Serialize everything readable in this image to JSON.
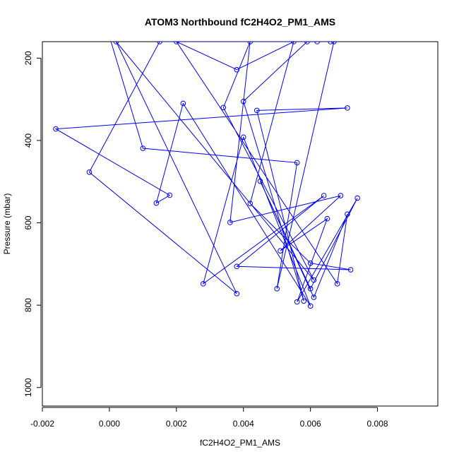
{
  "chart_data": {
    "type": "line",
    "title": "ATOM3 Northbound fC2H4O2_PM1_AMS",
    "xlabel": "fC2H4O2_PM1_AMS",
    "ylabel": "Pressure (mbar)",
    "xlim": [
      -0.002,
      0.0098
    ],
    "ylim": [
      1045,
      160
    ],
    "y_reversed": true,
    "xticks": [
      -0.002,
      0.0,
      0.002,
      0.004,
      0.006,
      0.008
    ],
    "xtick_labels": [
      "-0.002",
      "0.000",
      "0.002",
      "0.004",
      "0.006",
      "0.008"
    ],
    "yticks": [
      200,
      400,
      600,
      800,
      1000
    ],
    "ytick_labels": [
      "200",
      "400",
      "600",
      "800",
      "1000"
    ],
    "grid": false,
    "series": [
      {
        "color": "#0000ff",
        "marker": "open-circle",
        "points": [
          {
            "x": -0.0001,
            "y": 120
          },
          {
            "x": 0.001,
            "y": 419
          },
          {
            "x": 0.0056,
            "y": 454
          },
          {
            "x": 0.005,
            "y": 760
          },
          {
            "x": 0.0067,
            "y": 160
          },
          {
            "x": 0.0059,
            "y": 160
          },
          {
            "x": 0.004,
            "y": 305
          },
          {
            "x": 0.0058,
            "y": 790
          },
          {
            "x": 0.0044,
            "y": 327
          },
          {
            "x": 0.0071,
            "y": 321
          },
          {
            "x": -0.0016,
            "y": 372
          },
          {
            "x": 0.0018,
            "y": 533
          },
          {
            "x": 0.0014,
            "y": 552
          },
          {
            "x": 0.0022,
            "y": 310
          },
          {
            "x": 0.006,
            "y": 802
          },
          {
            "x": 0.004,
            "y": 392
          },
          {
            "x": 0.0028,
            "y": 748
          },
          {
            "x": 0.0064,
            "y": 534
          },
          {
            "x": 0.0038,
            "y": 706
          },
          {
            "x": 0.0072,
            "y": 714
          },
          {
            "x": 0.006,
            "y": 698
          },
          {
            "x": 0.0042,
            "y": 553
          },
          {
            "x": 0.0055,
            "y": 160
          },
          {
            "x": 0.0038,
            "y": 228
          },
          {
            "x": 0.002,
            "y": 160
          },
          {
            "x": 0.0068,
            "y": 748
          },
          {
            "x": 0.0071,
            "y": 579
          },
          {
            "x": 0.0061,
            "y": 781
          },
          {
            "x": 0.0045,
            "y": 499
          },
          {
            "x": 0.006,
            "y": 760
          },
          {
            "x": 0.0074,
            "y": 540
          },
          {
            "x": 0.0056,
            "y": 792
          },
          {
            "x": 0.0065,
            "y": 590
          },
          {
            "x": 0.0051,
            "y": 668
          },
          {
            "x": 0.0069,
            "y": 534
          },
          {
            "x": 0.0036,
            "y": 599
          },
          {
            "x": 0.0042,
            "y": 160
          },
          {
            "x": 0.0034,
            "y": 320
          },
          {
            "x": 0.0061,
            "y": 739
          },
          {
            "x": 0.0002,
            "y": 160
          },
          {
            "x": 0.0038,
            "y": 772
          },
          {
            "x": -0.0006,
            "y": 477
          },
          {
            "x": 0.0015,
            "y": 160
          },
          {
            "x": 0.0066,
            "y": 160
          },
          {
            "x": 0.0062,
            "y": 160
          }
        ]
      }
    ]
  }
}
